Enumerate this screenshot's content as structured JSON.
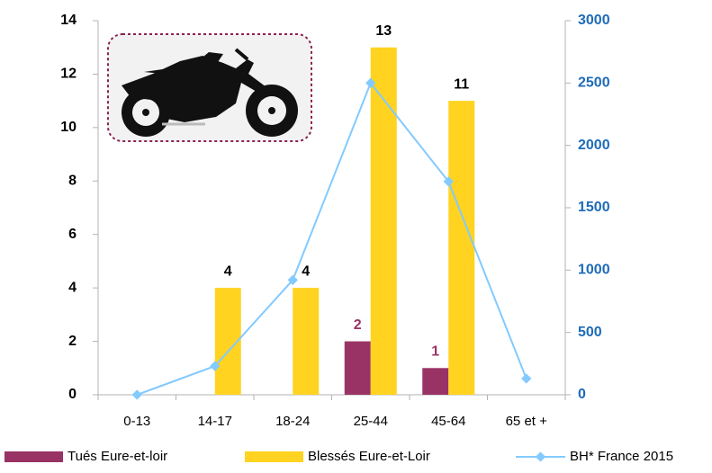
{
  "chart_data": {
    "type": "bar_line",
    "categories": [
      "0-13",
      "14-17",
      "18-24",
      "25-44",
      "45-64",
      "65 et +"
    ],
    "series": [
      {
        "name": "Tués Eure-et-loir",
        "type": "bar",
        "color": "#993366",
        "label_color": "#993366",
        "values": [
          null,
          null,
          null,
          2,
          1,
          null
        ]
      },
      {
        "name": "Blessés Eure-et-Loir",
        "type": "bar",
        "color": "#FFD320",
        "label_color": "#000000",
        "values": [
          null,
          4,
          4,
          13,
          11,
          null
        ]
      },
      {
        "name": "BH* France 2015",
        "type": "line",
        "axis": "y2",
        "color": "#83CAFF",
        "values": [
          0,
          230,
          920,
          2500,
          1710,
          130
        ]
      }
    ],
    "ylim": [
      0,
      14
    ],
    "yticks": [
      0,
      2,
      4,
      6,
      8,
      10,
      12,
      14
    ],
    "y2lim": [
      0,
      3000
    ],
    "y2ticks": [
      0,
      500,
      1000,
      1500,
      2000,
      2500,
      3000
    ],
    "y2_color": "#1E6BB8"
  }
}
